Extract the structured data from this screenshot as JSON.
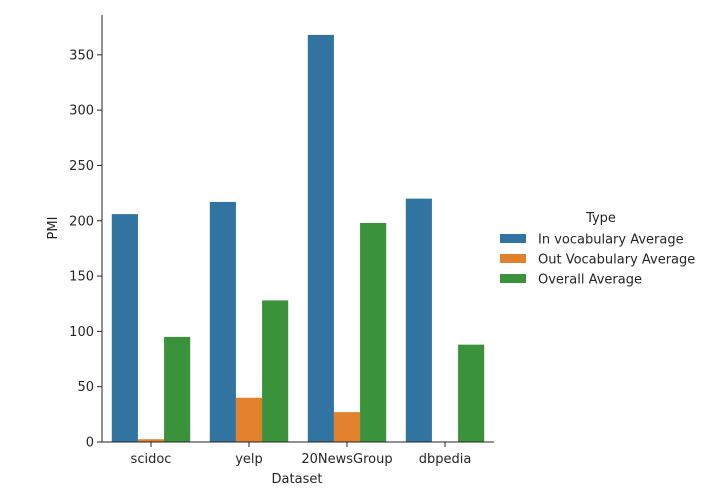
{
  "chart_data": {
    "type": "bar",
    "xlabel": "Dataset",
    "ylabel": "PMI",
    "categories": [
      "scidoc",
      "yelp",
      "20NewsGroup",
      "dbpedia"
    ],
    "ylim": [
      0,
      386
    ],
    "yticks": [
      0,
      50,
      100,
      150,
      200,
      250,
      300,
      350
    ],
    "grid": false,
    "legend": {
      "title": "Type",
      "placement": "right"
    },
    "series": [
      {
        "name": "In vocabulary Average",
        "color": "#3274a1",
        "values": [
          206,
          217,
          368,
          220
        ]
      },
      {
        "name": "Out Vocabulary Average",
        "color": "#e1812c",
        "values": [
          2.5,
          40,
          27,
          0
        ]
      },
      {
        "name": "Overall Average",
        "color": "#3a923a",
        "values": [
          95,
          128,
          198,
          88
        ]
      }
    ]
  }
}
